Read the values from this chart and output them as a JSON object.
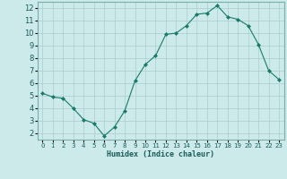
{
  "x": [
    0,
    1,
    2,
    3,
    4,
    5,
    6,
    7,
    8,
    9,
    10,
    11,
    12,
    13,
    14,
    15,
    16,
    17,
    18,
    19,
    20,
    21,
    22,
    23
  ],
  "y": [
    5.2,
    4.9,
    4.8,
    4.0,
    3.1,
    2.8,
    1.8,
    2.5,
    3.8,
    6.2,
    7.5,
    8.2,
    9.9,
    10.0,
    10.6,
    11.5,
    11.6,
    12.2,
    11.3,
    11.1,
    10.6,
    9.1,
    7.0,
    6.3
  ],
  "line_color": "#1a7a6a",
  "marker": "D",
  "marker_size": 2,
  "bg_color": "#cceaea",
  "grid_color": "#aacccc",
  "xlabel": "Humidex (Indice chaleur)",
  "xlim": [
    -0.5,
    23.5
  ],
  "ylim": [
    1.5,
    12.5
  ],
  "yticks": [
    2,
    3,
    4,
    5,
    6,
    7,
    8,
    9,
    10,
    11,
    12
  ],
  "xticks": [
    0,
    1,
    2,
    3,
    4,
    5,
    6,
    7,
    8,
    9,
    10,
    11,
    12,
    13,
    14,
    15,
    16,
    17,
    18,
    19,
    20,
    21,
    22,
    23
  ]
}
